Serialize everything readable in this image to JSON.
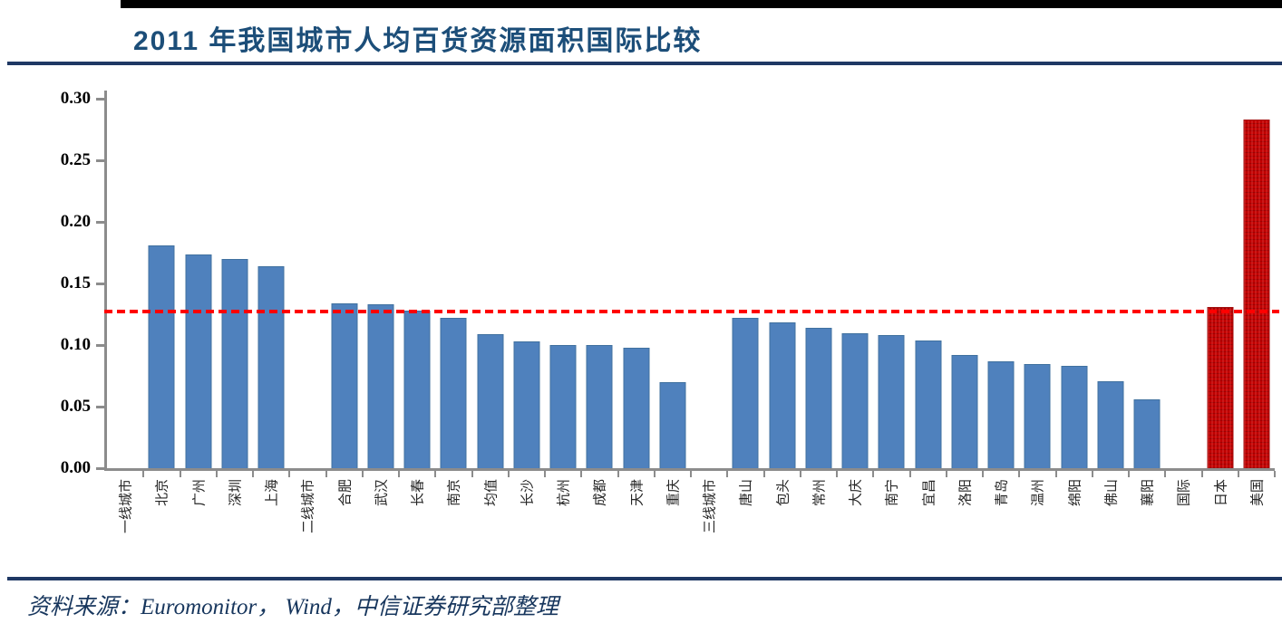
{
  "header": {
    "title": "2011 年我国城市人均百货资源面积国际比较"
  },
  "footer": {
    "source": "资料来源：Euromonitor， Wind，中信证券研究部整理"
  },
  "colors": {
    "title_blue": "#1C4E79",
    "divider_navy": "#1F3864",
    "top_bar_black": "#000000",
    "bar_blue": "#4F81BD",
    "bar_red": "#C00000",
    "reference_line_red": "#FF0000",
    "axis_gray": "#8C8C8C"
  },
  "chart_data": {
    "type": "bar",
    "title": "2011 年我国城市人均百货资源面积国际比较",
    "xlabel": "",
    "ylabel": "",
    "ylim": [
      0,
      0.3
    ],
    "yticks": [
      "0.00",
      "0.05",
      "0.10",
      "0.15",
      "0.20",
      "0.25",
      "0.30"
    ],
    "grid": false,
    "legend": null,
    "x_label_rotation_degrees": -90,
    "reference_line": {
      "value": 0.127,
      "style": "dashed",
      "color": "#FF0000"
    },
    "bars": [
      {
        "label": "一线城市",
        "value": null,
        "color": null
      },
      {
        "label": "北京",
        "value": 0.18,
        "color": "blue"
      },
      {
        "label": "广州",
        "value": 0.173,
        "color": "blue"
      },
      {
        "label": "深圳",
        "value": 0.169,
        "color": "blue"
      },
      {
        "label": "上海",
        "value": 0.163,
        "color": "blue"
      },
      {
        "label": "二线城市",
        "value": null,
        "color": null
      },
      {
        "label": "合肥",
        "value": 0.133,
        "color": "blue"
      },
      {
        "label": "武汉",
        "value": 0.132,
        "color": "blue"
      },
      {
        "label": "长春",
        "value": 0.127,
        "color": "blue"
      },
      {
        "label": "南京",
        "value": 0.121,
        "color": "blue"
      },
      {
        "label": "均值",
        "value": 0.108,
        "color": "blue"
      },
      {
        "label": "长沙",
        "value": 0.102,
        "color": "blue"
      },
      {
        "label": "杭州",
        "value": 0.099,
        "color": "blue"
      },
      {
        "label": "成都",
        "value": 0.099,
        "color": "blue"
      },
      {
        "label": "天津",
        "value": 0.097,
        "color": "blue"
      },
      {
        "label": "重庆",
        "value": 0.069,
        "color": "blue"
      },
      {
        "label": "三线城市",
        "value": null,
        "color": null
      },
      {
        "label": "唐山",
        "value": 0.121,
        "color": "blue"
      },
      {
        "label": "包头",
        "value": 0.118,
        "color": "blue"
      },
      {
        "label": "常州",
        "value": 0.113,
        "color": "blue"
      },
      {
        "label": "大庆",
        "value": 0.109,
        "color": "blue"
      },
      {
        "label": "南宁",
        "value": 0.107,
        "color": "blue"
      },
      {
        "label": "宜昌",
        "value": 0.103,
        "color": "blue"
      },
      {
        "label": "洛阳",
        "value": 0.091,
        "color": "blue"
      },
      {
        "label": "青岛",
        "value": 0.086,
        "color": "blue"
      },
      {
        "label": "温州",
        "value": 0.084,
        "color": "blue"
      },
      {
        "label": "绵阳",
        "value": 0.082,
        "color": "blue"
      },
      {
        "label": "佛山",
        "value": 0.07,
        "color": "blue"
      },
      {
        "label": "襄阳",
        "value": 0.055,
        "color": "blue"
      },
      {
        "label": "国际",
        "value": null,
        "color": null
      },
      {
        "label": "日本",
        "value": 0.13,
        "color": "red"
      },
      {
        "label": "美国",
        "value": 0.282,
        "color": "red"
      }
    ]
  }
}
